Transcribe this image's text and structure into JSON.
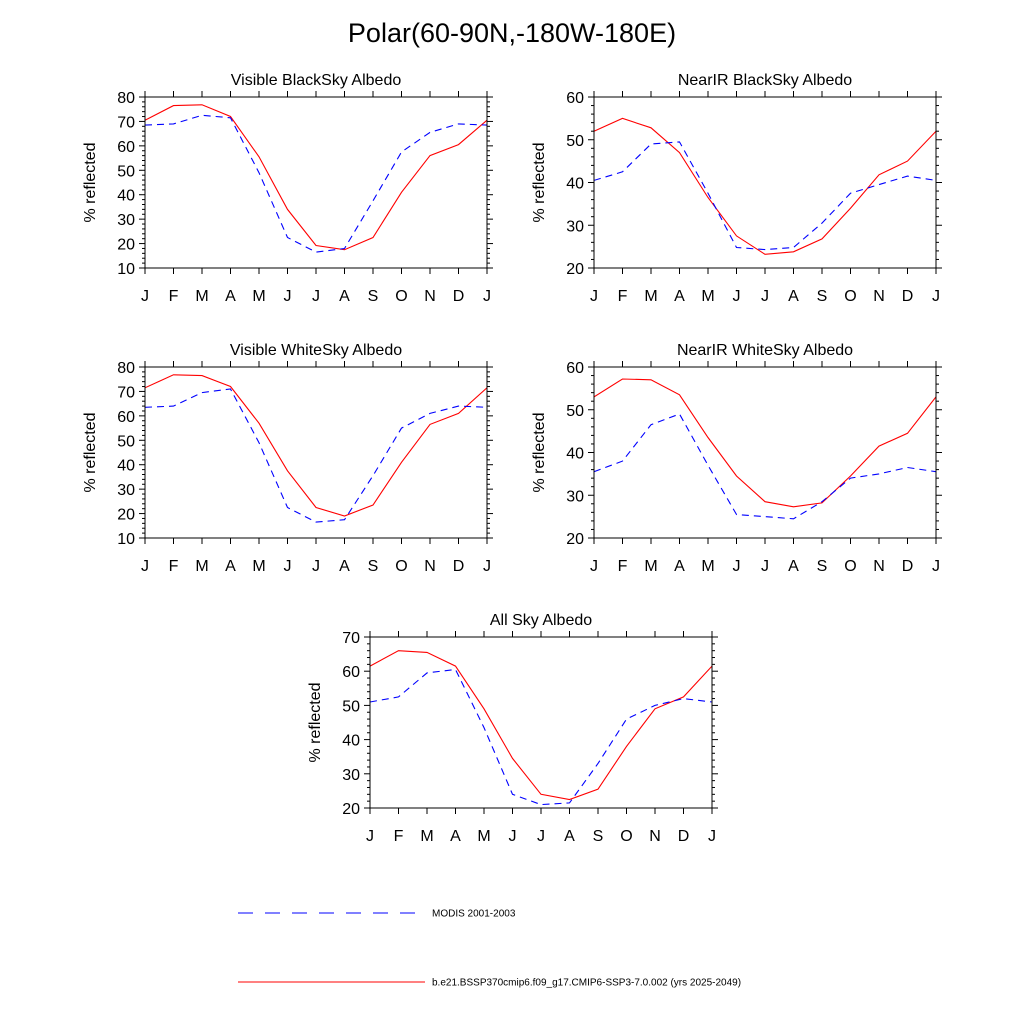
{
  "figure": {
    "title": "Polar(60-90N,-180W-180E)"
  },
  "colors": {
    "model": "#ff0000",
    "obs": "#0000ff",
    "axis": "#000000"
  },
  "legend": [
    {
      "key": "obs",
      "label": "MODIS 2001-2003",
      "style": "dashed",
      "color": "#0000ff"
    },
    {
      "key": "model",
      "label": "b.e21.BSSP370cmip6.f09_g17.CMIP6-SSP3-7.0.002 (yrs 2025-2049)",
      "style": "solid",
      "color": "#ff0000"
    }
  ],
  "chart_data": [
    {
      "type": "line",
      "title": "Visible BlackSky Albedo",
      "xlabel": "",
      "ylabel": "% reflected",
      "categories": [
        "J",
        "F",
        "M",
        "A",
        "M",
        "J",
        "J",
        "A",
        "S",
        "O",
        "N",
        "D",
        "J"
      ],
      "ylim": [
        10,
        80
      ],
      "yticks": [
        10,
        20,
        30,
        40,
        50,
        60,
        70,
        80
      ],
      "series": [
        {
          "key": "model",
          "values": [
            70.5,
            76.5,
            76.8,
            72.0,
            55.5,
            34.0,
            19.2,
            17.5,
            22.5,
            41.0,
            56.0,
            60.5,
            70.5
          ]
        },
        {
          "key": "obs",
          "values": [
            68.5,
            69.0,
            72.5,
            71.5,
            49.0,
            22.5,
            16.5,
            18.0,
            37.5,
            57.5,
            65.5,
            69.0,
            68.5
          ]
        }
      ]
    },
    {
      "type": "line",
      "title": "NearIR BlackSky Albedo",
      "xlabel": "",
      "ylabel": "% reflected",
      "categories": [
        "J",
        "F",
        "M",
        "A",
        "M",
        "J",
        "J",
        "A",
        "S",
        "O",
        "N",
        "D",
        "J"
      ],
      "ylim": [
        20,
        60
      ],
      "yticks": [
        20,
        30,
        40,
        50,
        60
      ],
      "series": [
        {
          "key": "model",
          "values": [
            52.0,
            55.0,
            52.8,
            47.0,
            36.5,
            27.5,
            23.2,
            23.8,
            26.8,
            34.0,
            41.8,
            45.0,
            52.0
          ]
        },
        {
          "key": "obs",
          "values": [
            40.5,
            42.5,
            49.0,
            49.5,
            37.5,
            24.8,
            24.3,
            24.8,
            30.5,
            37.5,
            39.5,
            41.5,
            40.5
          ]
        }
      ]
    },
    {
      "type": "line",
      "title": "Visible WhiteSky Albedo",
      "xlabel": "",
      "ylabel": "% reflected",
      "categories": [
        "J",
        "F",
        "M",
        "A",
        "M",
        "J",
        "J",
        "A",
        "S",
        "O",
        "N",
        "D",
        "J"
      ],
      "ylim": [
        10,
        80
      ],
      "yticks": [
        10,
        20,
        30,
        40,
        50,
        60,
        70,
        80
      ],
      "series": [
        {
          "key": "model",
          "values": [
            71.5,
            76.8,
            76.5,
            72.0,
            57.0,
            37.5,
            22.5,
            19.0,
            23.5,
            41.0,
            56.5,
            61.0,
            71.5
          ]
        },
        {
          "key": "obs",
          "values": [
            63.5,
            64.0,
            69.5,
            71.0,
            49.0,
            22.5,
            16.5,
            17.5,
            35.5,
            55.0,
            61.0,
            64.0,
            63.5
          ]
        }
      ]
    },
    {
      "type": "line",
      "title": "NearIR WhiteSky Albedo",
      "xlabel": "",
      "ylabel": "% reflected",
      "categories": [
        "J",
        "F",
        "M",
        "A",
        "M",
        "J",
        "J",
        "A",
        "S",
        "O",
        "N",
        "D",
        "J"
      ],
      "ylim": [
        20,
        60
      ],
      "yticks": [
        20,
        30,
        40,
        50,
        60
      ],
      "series": [
        {
          "key": "model",
          "values": [
            53.0,
            57.2,
            57.0,
            53.5,
            43.5,
            34.5,
            28.5,
            27.3,
            28.2,
            34.5,
            41.5,
            44.5,
            53.0
          ]
        },
        {
          "key": "obs",
          "values": [
            35.5,
            38.0,
            46.5,
            49.0,
            37.0,
            25.5,
            25.0,
            24.5,
            28.5,
            34.0,
            35.0,
            36.5,
            35.5
          ]
        }
      ]
    },
    {
      "type": "line",
      "title": "All Sky Albedo",
      "xlabel": "",
      "ylabel": "% reflected",
      "categories": [
        "J",
        "F",
        "M",
        "A",
        "M",
        "J",
        "J",
        "A",
        "S",
        "O",
        "N",
        "D",
        "J"
      ],
      "ylim": [
        20,
        70
      ],
      "yticks": [
        20,
        30,
        40,
        50,
        60,
        70
      ],
      "series": [
        {
          "key": "model",
          "values": [
            61.5,
            66.0,
            65.5,
            61.5,
            49.0,
            34.5,
            24.0,
            22.5,
            25.5,
            38.0,
            49.0,
            52.5,
            61.5
          ]
        },
        {
          "key": "obs",
          "values": [
            51.0,
            52.5,
            59.5,
            60.5,
            43.5,
            24.0,
            21.0,
            21.5,
            33.0,
            46.0,
            50.0,
            52.0,
            51.0
          ]
        }
      ]
    }
  ]
}
